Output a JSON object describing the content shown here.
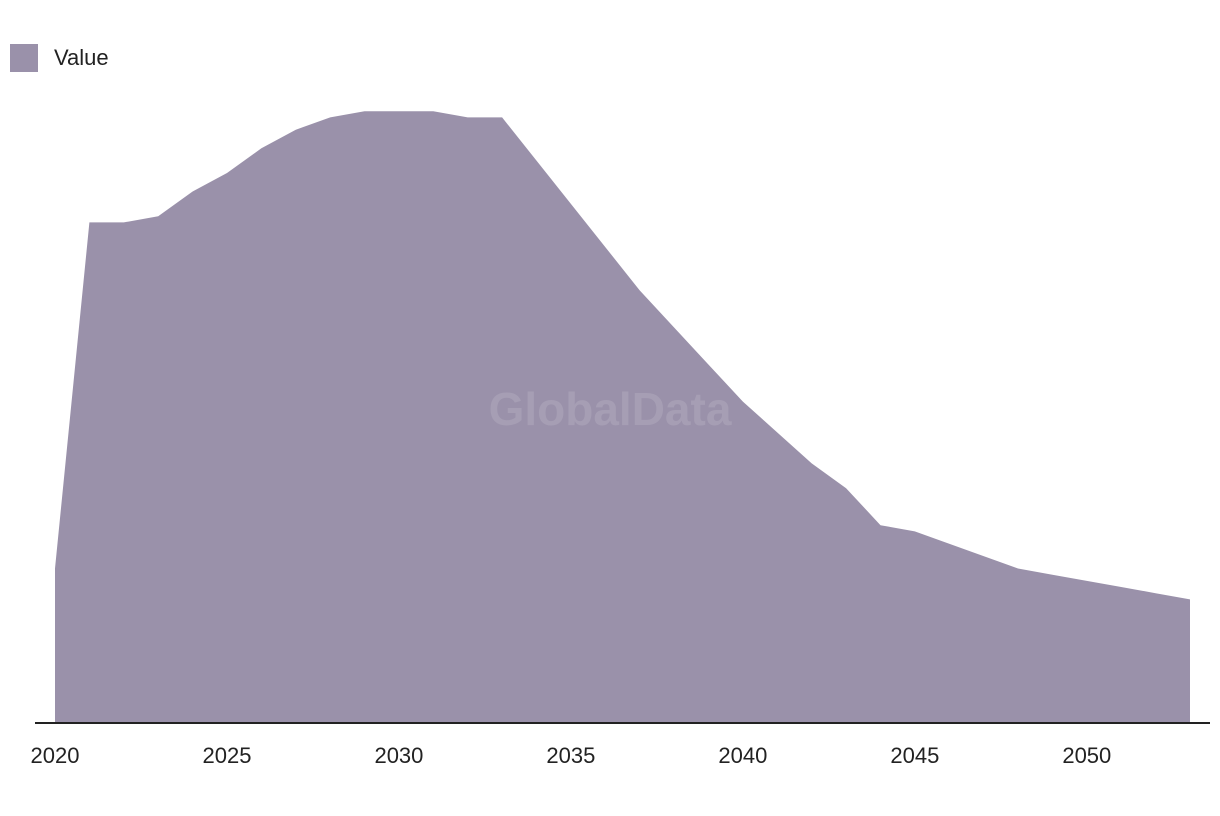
{
  "watermark": "GlobalData",
  "colors": {
    "area": "#9a91aa",
    "axis": "#222222"
  },
  "chart_data": {
    "type": "area",
    "title": "",
    "xlabel": "",
    "ylabel": "",
    "legend_position": "top-left",
    "grid": false,
    "x_ticks": [
      2020,
      2025,
      2030,
      2035,
      2040,
      2045,
      2050
    ],
    "xlim": [
      2020,
      2053
    ],
    "ylim": [
      0,
      100
    ],
    "series": [
      {
        "name": "Value",
        "x": [
          2020,
          2021,
          2022,
          2023,
          2024,
          2025,
          2026,
          2027,
          2028,
          2029,
          2030,
          2031,
          2032,
          2033,
          2034,
          2035,
          2036,
          2037,
          2038,
          2039,
          2040,
          2041,
          2042,
          2043,
          2044,
          2045,
          2046,
          2047,
          2048,
          2049,
          2050,
          2051,
          2052,
          2053
        ],
        "values": [
          25,
          81,
          81,
          82,
          86,
          89,
          93,
          96,
          98,
          99,
          99,
          99,
          98,
          98,
          91,
          84,
          77,
          70,
          64,
          58,
          52,
          47,
          42,
          38,
          32,
          31,
          29,
          27,
          25,
          24,
          23,
          22,
          21,
          20
        ]
      }
    ]
  }
}
